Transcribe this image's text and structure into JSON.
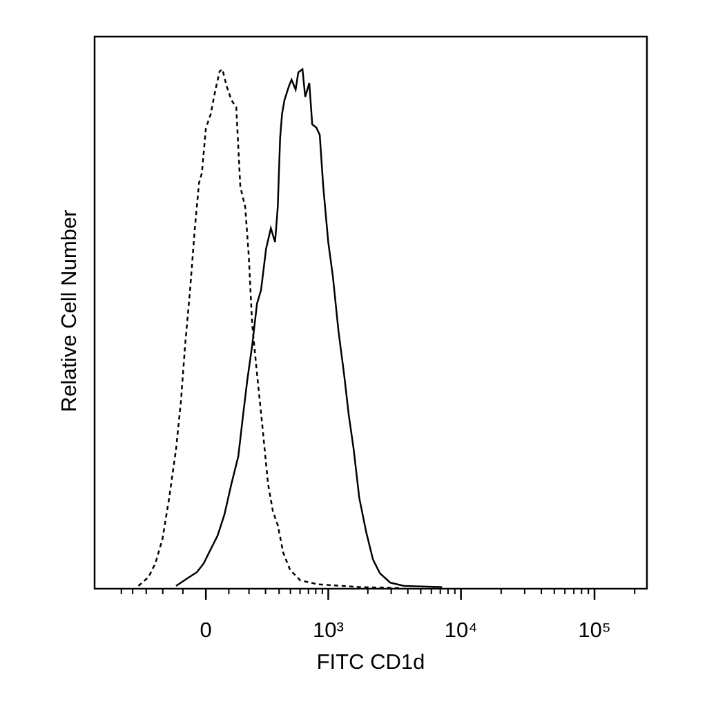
{
  "chart_data": {
    "type": "line",
    "xlabel": "FITC CD1d",
    "ylabel": "Relative Cell Number",
    "xscale": "biexponential",
    "xlim": [
      -820,
      247000
    ],
    "ylim": [
      0,
      100
    ],
    "xticks": [
      0,
      {
        "value": 1000,
        "label": "10³"
      },
      {
        "value": 10000,
        "label": "10⁴"
      },
      {
        "value": 100000,
        "label": "10⁵"
      }
    ],
    "xminorticks": [
      -500,
      -400,
      -300,
      -200,
      -100,
      100,
      200,
      300,
      400,
      500,
      600,
      700,
      800,
      900,
      2000,
      3000,
      4000,
      5000,
      6000,
      7000,
      8000,
      9000,
      20000,
      30000,
      40000,
      50000,
      60000,
      70000,
      80000,
      90000,
      200000
    ],
    "series": [
      {
        "color": "#000000",
        "dash": true,
        "x": [
          -355,
          -285,
          -242,
          -202,
          -166,
          -132,
          -109,
          -90,
          -68,
          -47,
          -29,
          -17,
          0,
          20,
          41,
          59,
          71,
          90,
          112,
          135,
          155,
          180,
          199,
          218,
          246,
          281,
          317,
          352,
          389,
          435,
          497,
          603,
          829,
          1722,
          3525
        ],
        "values": [
          0.5,
          2.1,
          4.6,
          9.0,
          16.5,
          25.3,
          34.0,
          44.1,
          54.1,
          65.3,
          73.5,
          75.3,
          83.4,
          85.9,
          90.4,
          93.7,
          94.1,
          91.0,
          88.5,
          87.2,
          72.8,
          69.1,
          60.3,
          47.8,
          39.0,
          29.0,
          19.0,
          14.0,
          11.5,
          6.5,
          3.4,
          1.5,
          0.8,
          0.3,
          0.1
        ]
      },
      {
        "color": "#000000",
        "dash": false,
        "x": [
          -132,
          -83,
          -38,
          -9,
          20,
          50,
          80,
          112,
          145,
          169,
          191,
          218,
          246,
          271,
          304,
          337,
          368,
          389,
          408,
          424,
          445,
          485,
          511,
          552,
          580,
          627,
          660,
          711,
          750,
          809,
          859,
          915,
          999,
          1085,
          1198,
          1319,
          1434,
          1562,
          1722,
          1941,
          2187,
          2465,
          2950,
          3744,
          7208
        ],
        "values": [
          0.5,
          1.8,
          3.0,
          4.6,
          7.1,
          9.6,
          13.4,
          19.0,
          24.0,
          31.5,
          37.8,
          44.1,
          51.6,
          54.1,
          61.6,
          65.3,
          62.8,
          69.1,
          81.6,
          86.0,
          88.5,
          91.0,
          92.2,
          90.4,
          93.5,
          94.1,
          89.1,
          91.6,
          84.1,
          83.5,
          82.2,
          72.8,
          62.8,
          56.6,
          46.6,
          39.0,
          31.5,
          25.3,
          16.5,
          10.3,
          5.3,
          2.8,
          1.1,
          0.5,
          0.3
        ]
      }
    ]
  }
}
